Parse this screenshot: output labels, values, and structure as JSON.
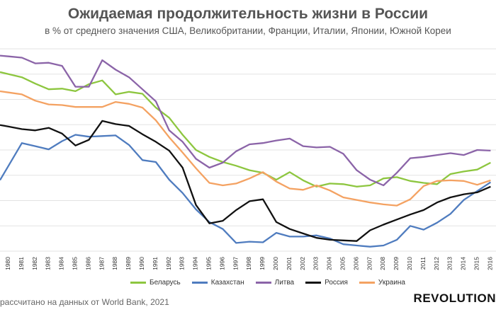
{
  "chart_data": {
    "type": "line",
    "title": "Ожидаемая продолжительность жизни в России",
    "subtitle": "в % от среднего значения США, Великобритании, Франции, Италии, Японии, Южной Кореи",
    "xlabel": "",
    "ylabel": "",
    "x": [
      "1980",
      "1981",
      "1982",
      "1983",
      "1984",
      "1985",
      "1986",
      "1987",
      "1988",
      "1989",
      "1990",
      "1991",
      "1992",
      "1993",
      "1994",
      "1995",
      "1996",
      "1997",
      "1998",
      "1999",
      "2000",
      "2001",
      "2002",
      "2003",
      "2004",
      "2005",
      "2006",
      "2007",
      "2008",
      "2009",
      "2010",
      "2011",
      "2012",
      "2013",
      "2014",
      "2015",
      "2016"
    ],
    "grid": "horizontal",
    "legend_position": "bottom",
    "series": [
      {
        "name": "Беларусь",
        "color": "#8dc63f",
        "values": [
          100.0,
          99.5,
          98.5,
          97.6,
          97.7,
          97.3,
          98.4,
          99.0,
          96.8,
          97.2,
          96.9,
          94.7,
          93.1,
          90.4,
          88.0,
          86.9,
          86.1,
          85.5,
          84.8,
          84.4,
          83.3,
          84.5,
          83.2,
          82.2,
          82.7,
          82.6,
          82.2,
          82.4,
          83.5,
          83.7,
          83.1,
          82.8,
          82.6,
          84.2,
          84.6,
          84.9,
          86.0
        ]
      },
      {
        "name": "Казахстан",
        "color": "#4f7cbf",
        "values": [
          85.5,
          89.1,
          88.6,
          88.1,
          89.4,
          90.4,
          90.1,
          90.2,
          90.3,
          88.8,
          86.4,
          86.1,
          83.3,
          81.2,
          78.6,
          76.6,
          75.5,
          73.3,
          73.5,
          73.4,
          74.9,
          74.3,
          74.3,
          74.5,
          74.0,
          73.1,
          72.9,
          72.7,
          72.9,
          73.8,
          76.0,
          75.4,
          76.5,
          77.9,
          80.1,
          81.5,
          82.9
        ]
      },
      {
        "name": "Литва",
        "color": "#8b64a8",
        "values": [
          102.8,
          102.6,
          101.7,
          101.8,
          101.3,
          98.0,
          98.0,
          102.2,
          100.7,
          99.5,
          97.6,
          95.7,
          91.1,
          89.3,
          86.6,
          85.2,
          86.0,
          87.8,
          88.9,
          89.1,
          89.5,
          89.8,
          88.6,
          88.4,
          88.5,
          87.4,
          84.8,
          83.3,
          82.4,
          84.4,
          86.7,
          86.9,
          87.2,
          87.5,
          87.2,
          88.0,
          87.9
        ]
      },
      {
        "name": "Россия",
        "color": "#111111",
        "values": [
          91.7,
          91.3,
          91.1,
          91.5,
          90.6,
          88.7,
          89.6,
          92.6,
          92.1,
          91.8,
          90.5,
          89.3,
          87.9,
          85.2,
          79.3,
          76.4,
          76.8,
          78.5,
          79.9,
          80.2,
          76.6,
          75.5,
          74.8,
          74.1,
          73.8,
          73.7,
          73.6,
          75.3,
          76.2,
          77.0,
          77.8,
          78.5,
          79.7,
          80.5,
          81.0,
          81.3,
          82.2
        ]
      },
      {
        "name": "Украина",
        "color": "#f4a262",
        "values": [
          97.1,
          96.8,
          95.8,
          95.2,
          95.1,
          94.8,
          94.8,
          94.8,
          95.6,
          95.3,
          94.7,
          92.7,
          90.0,
          87.6,
          85.1,
          82.8,
          82.4,
          82.7,
          83.5,
          84.5,
          83.0,
          81.9,
          81.7,
          82.4,
          81.6,
          80.5,
          80.1,
          79.7,
          79.4,
          79.2,
          80.2,
          82.3,
          83.1,
          83.2,
          83.1,
          82.5,
          83.2
        ]
      }
    ],
    "ylim": [
      72,
      104
    ]
  },
  "source_text": "рассчитано на данных от World Bank, 2021",
  "logo_text": "REVOLUTION"
}
